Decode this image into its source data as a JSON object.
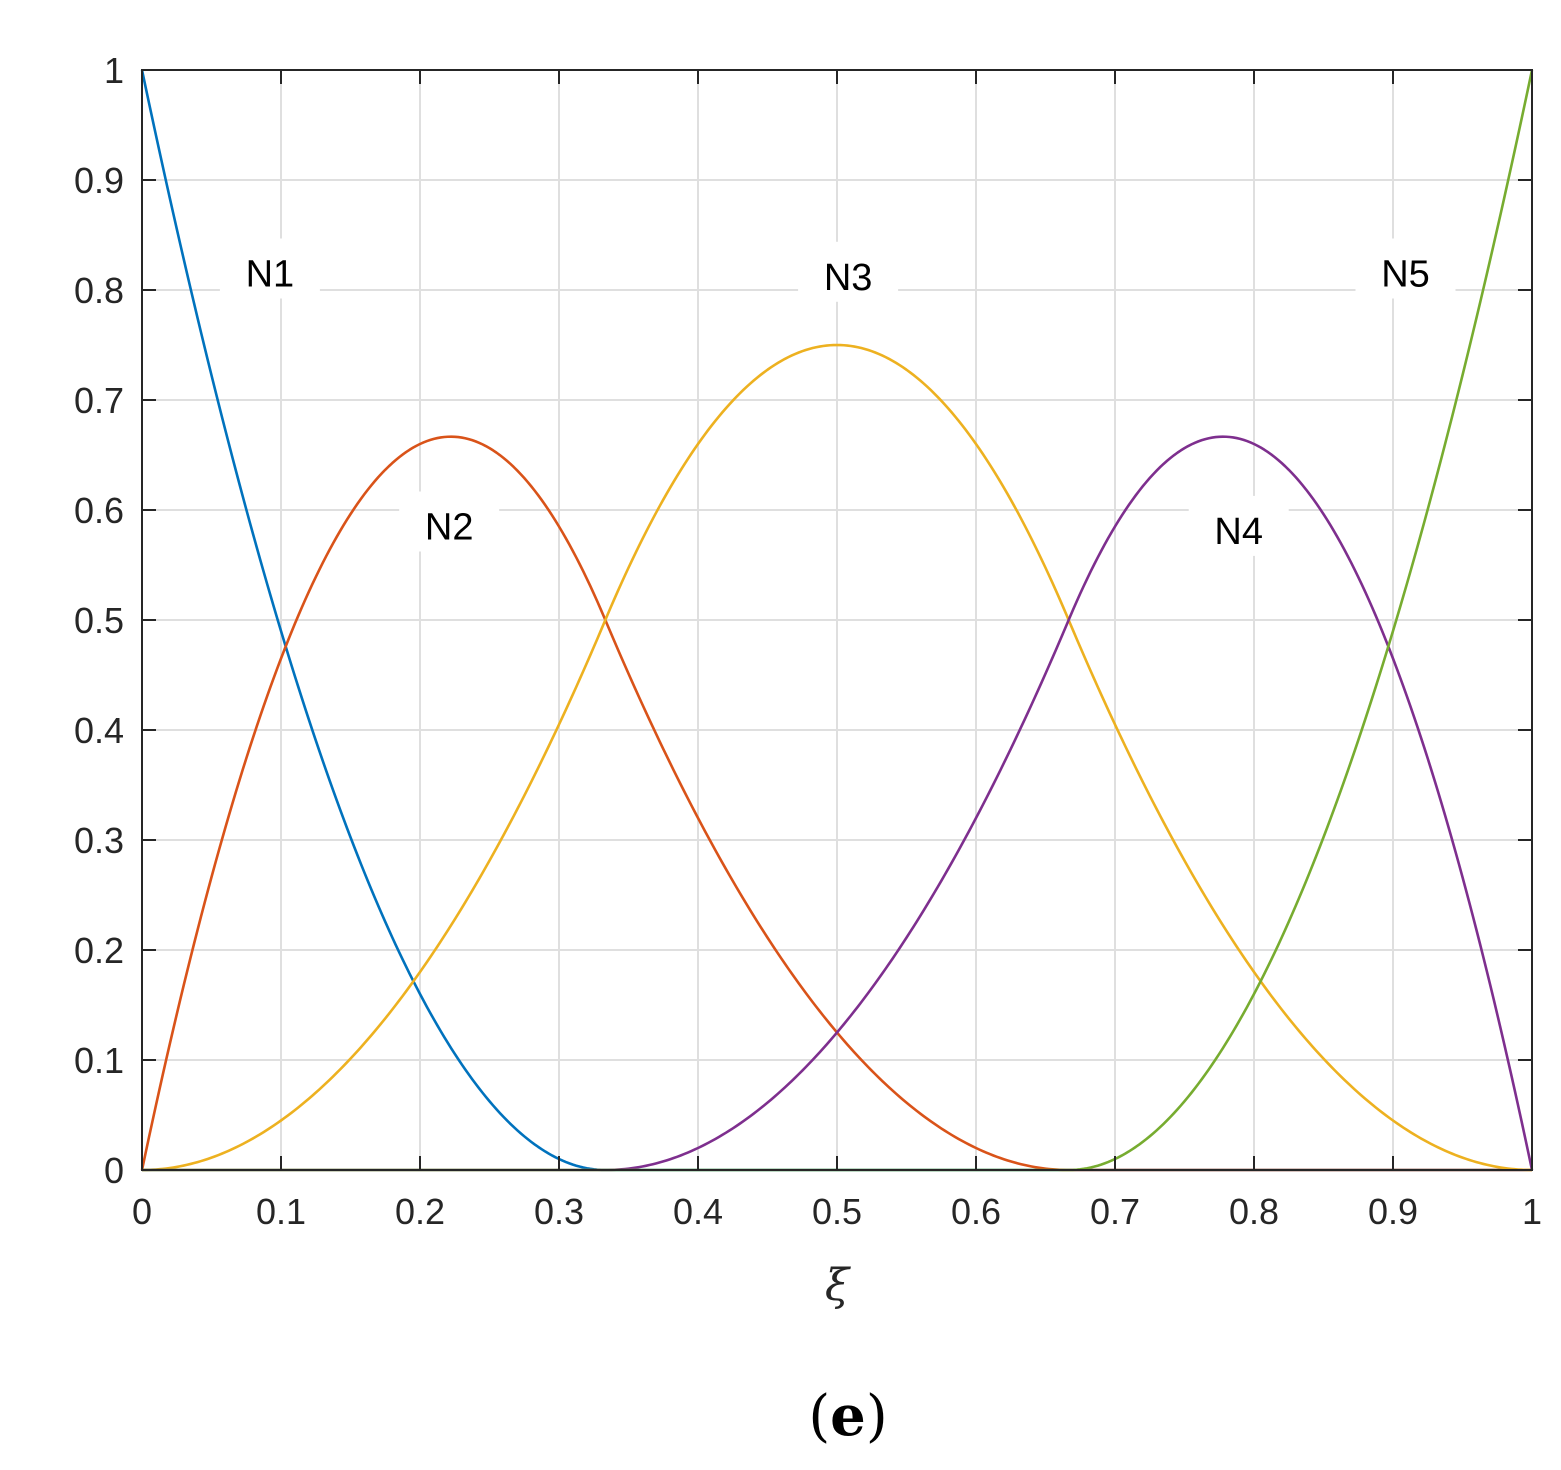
{
  "chart_data": {
    "type": "line",
    "xlabel": "ξ",
    "ylabel": "",
    "xlim": [
      0,
      1
    ],
    "ylim": [
      0,
      1
    ],
    "grid": true,
    "x_ticks": [
      "0",
      "0.1",
      "0.2",
      "0.3",
      "0.4",
      "0.5",
      "0.6",
      "0.7",
      "0.8",
      "0.9",
      "1"
    ],
    "y_ticks": [
      "0",
      "0.1",
      "0.2",
      "0.3",
      "0.4",
      "0.5",
      "0.6",
      "0.7",
      "0.8",
      "0.9",
      "1"
    ],
    "knots": [
      0,
      0,
      0,
      0.333333,
      0.666667,
      1,
      1,
      1
    ],
    "degree": 2,
    "series": [
      {
        "name": "N1",
        "color": "#0072BD",
        "x": [
          0,
          0.05,
          0.1,
          0.15,
          0.2,
          0.25,
          0.3,
          0.333,
          0.4,
          0.5,
          0.6,
          0.7,
          0.8,
          0.9,
          1
        ],
        "y": [
          1,
          0.7225,
          0.49,
          0.3025,
          0.16,
          0.0625,
          0.01,
          0,
          0,
          0,
          0,
          0,
          0,
          0,
          0
        ]
      },
      {
        "name": "N2",
        "color": "#D95319",
        "x": [
          0,
          0.05,
          0.1,
          0.15,
          0.2,
          0.222,
          0.25,
          0.3,
          0.333,
          0.4,
          0.5,
          0.6,
          0.667,
          0.7,
          0.8,
          0.9,
          1
        ],
        "y": [
          0,
          0.2663,
          0.4725,
          0.6038,
          0.66,
          0.6667,
          0.6563,
          0.57,
          0.5,
          0.32,
          0.125,
          0.02,
          0,
          0,
          0,
          0,
          0
        ]
      },
      {
        "name": "N3",
        "color": "#EDB120",
        "x": [
          0,
          0.05,
          0.1,
          0.15,
          0.2,
          0.25,
          0.3,
          0.333,
          0.4,
          0.5,
          0.6,
          0.667,
          0.7,
          0.75,
          0.8,
          0.85,
          0.9,
          0.95,
          1
        ],
        "y": [
          0,
          0.0113,
          0.045,
          0.1013,
          0.18,
          0.2813,
          0.405,
          0.5,
          0.67,
          0.75,
          0.67,
          0.5,
          0.405,
          0.2813,
          0.18,
          0.1013,
          0.045,
          0.0113,
          0
        ]
      },
      {
        "name": "N4",
        "color": "#7E2F8E",
        "x": [
          0,
          0.1,
          0.2,
          0.333,
          0.4,
          0.5,
          0.6,
          0.667,
          0.7,
          0.75,
          0.778,
          0.8,
          0.85,
          0.9,
          0.95,
          1
        ],
        "y": [
          0,
          0,
          0,
          0,
          0.02,
          0.125,
          0.32,
          0.5,
          0.57,
          0.6563,
          0.6667,
          0.66,
          0.6038,
          0.4725,
          0.2663,
          0
        ]
      },
      {
        "name": "N5",
        "color": "#77AC30",
        "x": [
          0,
          0.1,
          0.2,
          0.3,
          0.4,
          0.5,
          0.6,
          0.667,
          0.7,
          0.75,
          0.8,
          0.85,
          0.9,
          0.95,
          1
        ],
        "y": [
          0,
          0,
          0,
          0,
          0,
          0,
          0,
          0,
          0.01,
          0.0625,
          0.16,
          0.3025,
          0.49,
          0.7225,
          1
        ]
      }
    ],
    "annotations": [
      {
        "text": "N1",
        "x": 0.092,
        "y": 0.815
      },
      {
        "text": "N2",
        "x": 0.221,
        "y": 0.585
      },
      {
        "text": "N3",
        "x": 0.508,
        "y": 0.812
      },
      {
        "text": "N4",
        "x": 0.789,
        "y": 0.581
      },
      {
        "text": "N5",
        "x": 0.909,
        "y": 0.815
      }
    ]
  },
  "caption": {
    "open": "(",
    "letter": "e",
    "close": ")"
  },
  "colors": {
    "axis": "#262626",
    "grid": "#dfdfdf"
  }
}
